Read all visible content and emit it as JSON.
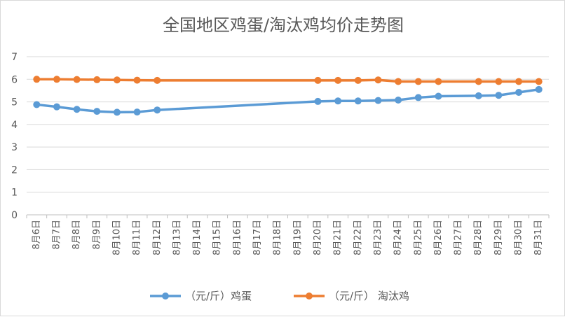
{
  "chart_data": {
    "type": "line",
    "title": "全国地区鸡蛋/淘汰鸡均价走势图",
    "xlabel": "",
    "ylabel": "",
    "ylim": [
      0,
      7
    ],
    "yticks": [
      "0",
      "1",
      "2",
      "3",
      "4",
      "5",
      "6",
      "7"
    ],
    "grid": true,
    "legend": "bottom",
    "categories": [
      "8月6日",
      "8月7日",
      "8月8日",
      "8月9日",
      "8月10日",
      "8月11日",
      "8月12日",
      "8月13日",
      "8月14日",
      "8月15日",
      "8月16日",
      "8月17日",
      "8月18日",
      "8月19日",
      "8月20日",
      "8月21日",
      "8月22日",
      "8月23日",
      "8月24日",
      "8月25日",
      "8月26日",
      "8月27日",
      "8月28日",
      "8月29日",
      "8月30日",
      "8月31日"
    ],
    "series": [
      {
        "name": "（元/斤）鸡蛋",
        "color": "#5B9BD5",
        "values": [
          4.88,
          4.78,
          4.67,
          4.58,
          4.54,
          4.55,
          4.64,
          null,
          null,
          null,
          null,
          null,
          null,
          null,
          5.02,
          5.04,
          5.04,
          5.06,
          5.08,
          5.19,
          5.25,
          null,
          5.27,
          5.29,
          5.42,
          5.55
        ]
      },
      {
        "name": "（元/斤） 淘汰鸡",
        "color": "#ED7D31",
        "values": [
          6.0,
          6.0,
          5.99,
          5.98,
          5.97,
          5.96,
          5.95,
          null,
          null,
          null,
          null,
          null,
          null,
          null,
          5.95,
          5.95,
          5.95,
          5.97,
          5.9,
          5.9,
          5.9,
          null,
          5.9,
          5.9,
          5.9,
          5.9
        ]
      }
    ]
  }
}
